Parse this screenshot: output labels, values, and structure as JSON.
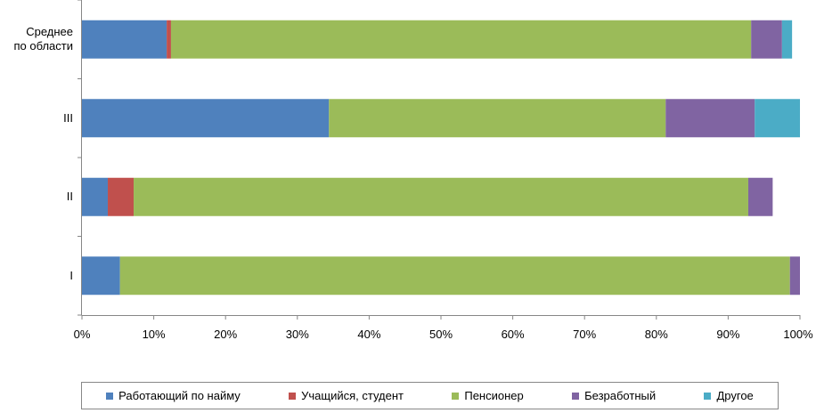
{
  "chart_data": {
    "type": "bar",
    "orientation": "horizontal",
    "stacked": "percent",
    "categories": [
      "Среднее\nпо области",
      "III",
      "II",
      "I"
    ],
    "series": [
      {
        "name": "Работающий по найму",
        "color": "#4F81BD",
        "values": [
          11.8,
          34.4,
          3.6,
          5.3
        ]
      },
      {
        "name": "Учащийся, студент",
        "color": "#C0504D",
        "values": [
          0.6,
          0.0,
          3.6,
          0.0
        ]
      },
      {
        "name": "Пенсионер",
        "color": "#9BBB59",
        "values": [
          80.8,
          46.9,
          85.6,
          93.3
        ]
      },
      {
        "name": "Безработный",
        "color": "#8064A2",
        "values": [
          4.3,
          12.4,
          3.4,
          1.4
        ]
      },
      {
        "name": "Другое",
        "color": "#4BACC6",
        "values": [
          1.4,
          6.3,
          0.0,
          0.0
        ]
      }
    ],
    "xlim": [
      0,
      100
    ],
    "x_ticks": [
      "0%",
      "10%",
      "20%",
      "30%",
      "40%",
      "50%",
      "60%",
      "70%",
      "80%",
      "90%",
      "100%"
    ],
    "grid": false,
    "legend_position": "bottom"
  }
}
